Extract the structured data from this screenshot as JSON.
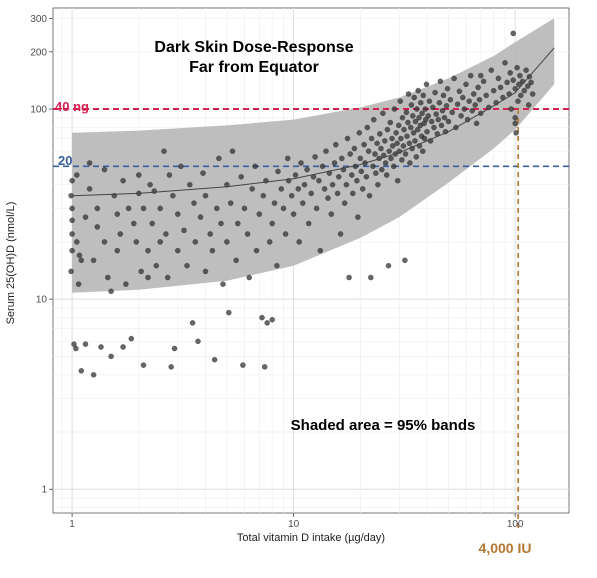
{
  "chart_data": {
    "type": "scatter",
    "title_line1": "Dark Skin Dose-Response",
    "title_line2": "Far from Equator",
    "xlabel": "Total vitamin D intake (µg/day)",
    "ylabel": "Serum 25(OH)D (nmol/L)",
    "x_scale": "log",
    "y_scale": "log",
    "xlim": [
      0.82,
      175
    ],
    "ylim": [
      0.75,
      340
    ],
    "x_ticks": [
      {
        "value": 1,
        "label": "1"
      },
      {
        "value": 10,
        "label": "10"
      },
      {
        "value": 100,
        "label": "100"
      }
    ],
    "y_ticks": [
      {
        "value": 1,
        "label": "1"
      },
      {
        "value": 10,
        "label": "10"
      },
      {
        "value": 100,
        "label": "100"
      },
      {
        "value": 200,
        "label": "200"
      },
      {
        "value": 300,
        "label": "300"
      }
    ],
    "grid": true,
    "reference_lines": [
      {
        "label": "40 ng",
        "y": 100,
        "color": "#d6204f"
      },
      {
        "label": "20",
        "y": 50,
        "color": "#3a5fa0"
      }
    ],
    "vertical_reference": {
      "label": "4,000 IU",
      "x": 100,
      "color": "#b5762f"
    },
    "annotation": "Shaded area = 95% bands",
    "fit_curve": [
      {
        "x": 1,
        "y": 35
      },
      {
        "x": 2,
        "y": 36
      },
      {
        "x": 5,
        "y": 39
      },
      {
        "x": 10,
        "y": 43
      },
      {
        "x": 20,
        "y": 51
      },
      {
        "x": 30,
        "y": 59
      },
      {
        "x": 50,
        "y": 76
      },
      {
        "x": 80,
        "y": 104
      },
      {
        "x": 100,
        "y": 122
      },
      {
        "x": 150,
        "y": 210
      }
    ],
    "band_upper": [
      {
        "x": 1,
        "y": 75
      },
      {
        "x": 2,
        "y": 77
      },
      {
        "x": 5,
        "y": 82
      },
      {
        "x": 10,
        "y": 88
      },
      {
        "x": 20,
        "y": 102
      },
      {
        "x": 30,
        "y": 115
      },
      {
        "x": 50,
        "y": 145
      },
      {
        "x": 80,
        "y": 190
      },
      {
        "x": 100,
        "y": 225
      },
      {
        "x": 150,
        "y": 300
      }
    ],
    "band_lower": [
      {
        "x": 1,
        "y": 10.8
      },
      {
        "x": 2,
        "y": 11.2
      },
      {
        "x": 5,
        "y": 12.5
      },
      {
        "x": 10,
        "y": 15
      },
      {
        "x": 20,
        "y": 21
      },
      {
        "x": 30,
        "y": 27
      },
      {
        "x": 50,
        "y": 41
      },
      {
        "x": 80,
        "y": 62
      },
      {
        "x": 100,
        "y": 78
      },
      {
        "x": 150,
        "y": 135
      }
    ],
    "points": [
      {
        "x": 0.99,
        "y": 14
      },
      {
        "x": 1.0,
        "y": 18
      },
      {
        "x": 1.0,
        "y": 22
      },
      {
        "x": 1.0,
        "y": 26
      },
      {
        "x": 1.0,
        "y": 30
      },
      {
        "x": 0.99,
        "y": 35
      },
      {
        "x": 1.0,
        "y": 42
      },
      {
        "x": 1.02,
        "y": 5.8
      },
      {
        "x": 1.04,
        "y": 5.5
      },
      {
        "x": 1.05,
        "y": 20
      },
      {
        "x": 1.05,
        "y": 45
      },
      {
        "x": 1.07,
        "y": 12
      },
      {
        "x": 1.08,
        "y": 17
      },
      {
        "x": 1.1,
        "y": 16
      },
      {
        "x": 1.1,
        "y": 4.2
      },
      {
        "x": 1.15,
        "y": 27
      },
      {
        "x": 1.15,
        "y": 5.8
      },
      {
        "x": 1.2,
        "y": 52
      },
      {
        "x": 1.2,
        "y": 38
      },
      {
        "x": 1.25,
        "y": 4.0
      },
      {
        "x": 1.25,
        "y": 16
      },
      {
        "x": 1.3,
        "y": 30
      },
      {
        "x": 1.3,
        "y": 24
      },
      {
        "x": 1.35,
        "y": 5.6
      },
      {
        "x": 1.4,
        "y": 20
      },
      {
        "x": 1.4,
        "y": 48
      },
      {
        "x": 1.45,
        "y": 13
      },
      {
        "x": 1.5,
        "y": 11
      },
      {
        "x": 1.5,
        "y": 5.0
      },
      {
        "x": 1.55,
        "y": 35
      },
      {
        "x": 1.6,
        "y": 28
      },
      {
        "x": 1.6,
        "y": 18
      },
      {
        "x": 1.65,
        "y": 22
      },
      {
        "x": 1.7,
        "y": 42
      },
      {
        "x": 1.7,
        "y": 5.6
      },
      {
        "x": 1.75,
        "y": 12
      },
      {
        "x": 1.8,
        "y": 30
      },
      {
        "x": 1.85,
        "y": 6.2
      },
      {
        "x": 1.9,
        "y": 25
      },
      {
        "x": 1.95,
        "y": 20
      },
      {
        "x": 2.0,
        "y": 36
      },
      {
        "x": 2.0,
        "y": 45
      },
      {
        "x": 2.05,
        "y": 14
      },
      {
        "x": 2.1,
        "y": 30
      },
      {
        "x": 2.1,
        "y": 4.5
      },
      {
        "x": 2.2,
        "y": 13
      },
      {
        "x": 2.2,
        "y": 18
      },
      {
        "x": 2.25,
        "y": 40
      },
      {
        "x": 2.3,
        "y": 25
      },
      {
        "x": 2.35,
        "y": 37
      },
      {
        "x": 2.4,
        "y": 15
      },
      {
        "x": 2.5,
        "y": 20
      },
      {
        "x": 2.5,
        "y": 30
      },
      {
        "x": 2.6,
        "y": 60
      },
      {
        "x": 2.65,
        "y": 22
      },
      {
        "x": 2.7,
        "y": 13
      },
      {
        "x": 2.75,
        "y": 45
      },
      {
        "x": 2.8,
        "y": 4.4
      },
      {
        "x": 2.85,
        "y": 35
      },
      {
        "x": 2.9,
        "y": 5.5
      },
      {
        "x": 3.0,
        "y": 28
      },
      {
        "x": 3.0,
        "y": 18
      },
      {
        "x": 3.1,
        "y": 50
      },
      {
        "x": 3.2,
        "y": 23
      },
      {
        "x": 3.3,
        "y": 15
      },
      {
        "x": 3.4,
        "y": 40
      },
      {
        "x": 3.5,
        "y": 7.5
      },
      {
        "x": 3.55,
        "y": 32
      },
      {
        "x": 3.6,
        "y": 20
      },
      {
        "x": 3.7,
        "y": 6.0
      },
      {
        "x": 3.8,
        "y": 27
      },
      {
        "x": 3.9,
        "y": 46
      },
      {
        "x": 4.0,
        "y": 14
      },
      {
        "x": 4.0,
        "y": 35
      },
      {
        "x": 4.2,
        "y": 22
      },
      {
        "x": 4.3,
        "y": 18
      },
      {
        "x": 4.4,
        "y": 4.8
      },
      {
        "x": 4.5,
        "y": 30
      },
      {
        "x": 4.6,
        "y": 55
      },
      {
        "x": 4.7,
        "y": 25
      },
      {
        "x": 4.8,
        "y": 12
      },
      {
        "x": 5.0,
        "y": 40
      },
      {
        "x": 5.0,
        "y": 20
      },
      {
        "x": 5.1,
        "y": 8.5
      },
      {
        "x": 5.2,
        "y": 32
      },
      {
        "x": 5.3,
        "y": 60
      },
      {
        "x": 5.5,
        "y": 16
      },
      {
        "x": 5.6,
        "y": 25
      },
      {
        "x": 5.8,
        "y": 44
      },
      {
        "x": 5.9,
        "y": 4.5
      },
      {
        "x": 6.0,
        "y": 30
      },
      {
        "x": 6.2,
        "y": 22
      },
      {
        "x": 6.3,
        "y": 13
      },
      {
        "x": 6.5,
        "y": 38
      },
      {
        "x": 6.7,
        "y": 50
      },
      {
        "x": 6.8,
        "y": 18
      },
      {
        "x": 7.0,
        "y": 28
      },
      {
        "x": 7.2,
        "y": 8.0
      },
      {
        "x": 7.3,
        "y": 35
      },
      {
        "x": 7.4,
        "y": 4.4
      },
      {
        "x": 7.5,
        "y": 42
      },
      {
        "x": 7.6,
        "y": 7.5
      },
      {
        "x": 7.8,
        "y": 20
      },
      {
        "x": 8.0,
        "y": 25
      },
      {
        "x": 8.0,
        "y": 7.8
      },
      {
        "x": 8.2,
        "y": 32
      },
      {
        "x": 8.4,
        "y": 15
      },
      {
        "x": 8.5,
        "y": 47
      },
      {
        "x": 8.8,
        "y": 38
      },
      {
        "x": 9.0,
        "y": 30
      },
      {
        "x": 9.2,
        "y": 22
      },
      {
        "x": 9.4,
        "y": 55
      },
      {
        "x": 9.5,
        "y": 42
      },
      {
        "x": 9.8,
        "y": 35
      },
      {
        "x": 10.0,
        "y": 28
      },
      {
        "x": 10.2,
        "y": 45
      },
      {
        "x": 10.5,
        "y": 38
      },
      {
        "x": 10.6,
        "y": 20
      },
      {
        "x": 10.8,
        "y": 52
      },
      {
        "x": 11.0,
        "y": 32
      },
      {
        "x": 11.2,
        "y": 40
      },
      {
        "x": 11.5,
        "y": 48
      },
      {
        "x": 11.7,
        "y": 25
      },
      {
        "x": 12.0,
        "y": 36
      },
      {
        "x": 12.3,
        "y": 44
      },
      {
        "x": 12.5,
        "y": 56
      },
      {
        "x": 12.7,
        "y": 30
      },
      {
        "x": 13.0,
        "y": 42
      },
      {
        "x": 13.2,
        "y": 18
      },
      {
        "x": 13.5,
        "y": 50
      },
      {
        "x": 13.8,
        "y": 38
      },
      {
        "x": 14.0,
        "y": 60
      },
      {
        "x": 14.3,
        "y": 34
      },
      {
        "x": 14.5,
        "y": 46
      },
      {
        "x": 14.8,
        "y": 28
      },
      {
        "x": 15.0,
        "y": 40
      },
      {
        "x": 15.3,
        "y": 52
      },
      {
        "x": 15.5,
        "y": 65
      },
      {
        "x": 15.8,
        "y": 36
      },
      {
        "x": 16.0,
        "y": 44
      },
      {
        "x": 16.3,
        "y": 22
      },
      {
        "x": 16.5,
        "y": 55
      },
      {
        "x": 16.8,
        "y": 48
      },
      {
        "x": 17.0,
        "y": 32
      },
      {
        "x": 17.3,
        "y": 40
      },
      {
        "x": 17.5,
        "y": 70
      },
      {
        "x": 17.8,
        "y": 13
      },
      {
        "x": 18.0,
        "y": 58
      },
      {
        "x": 18.3,
        "y": 45
      },
      {
        "x": 18.5,
        "y": 36
      },
      {
        "x": 18.8,
        "y": 62
      },
      {
        "x": 19.0,
        "y": 50
      },
      {
        "x": 19.3,
        "y": 42
      },
      {
        "x": 19.5,
        "y": 27
      },
      {
        "x": 19.8,
        "y": 75
      },
      {
        "x": 20.0,
        "y": 55
      },
      {
        "x": 20.2,
        "y": 47
      },
      {
        "x": 20.5,
        "y": 38
      },
      {
        "x": 20.8,
        "y": 65
      },
      {
        "x": 21.0,
        "y": 52
      },
      {
        "x": 21.3,
        "y": 44
      },
      {
        "x": 21.5,
        "y": 80
      },
      {
        "x": 21.8,
        "y": 60
      },
      {
        "x": 22.0,
        "y": 35
      },
      {
        "x": 22.3,
        "y": 13
      },
      {
        "x": 22.5,
        "y": 70
      },
      {
        "x": 22.8,
        "y": 50
      },
      {
        "x": 23.0,
        "y": 88
      },
      {
        "x": 23.3,
        "y": 58
      },
      {
        "x": 23.5,
        "y": 46
      },
      {
        "x": 23.8,
        "y": 66
      },
      {
        "x": 24.0,
        "y": 40
      },
      {
        "x": 24.3,
        "y": 55
      },
      {
        "x": 24.5,
        "y": 74
      },
      {
        "x": 24.8,
        "y": 62
      },
      {
        "x": 25.0,
        "y": 48
      },
      {
        "x": 25.3,
        "y": 95
      },
      {
        "x": 25.5,
        "y": 57
      },
      {
        "x": 25.8,
        "y": 68
      },
      {
        "x": 26.0,
        "y": 52
      },
      {
        "x": 26.3,
        "y": 45
      },
      {
        "x": 26.5,
        "y": 78
      },
      {
        "x": 26.8,
        "y": 15
      },
      {
        "x": 27.0,
        "y": 60
      },
      {
        "x": 27.3,
        "y": 85
      },
      {
        "x": 27.5,
        "y": 55
      },
      {
        "x": 27.8,
        "y": 70
      },
      {
        "x": 28.0,
        "y": 64
      },
      {
        "x": 28.3,
        "y": 50
      },
      {
        "x": 28.5,
        "y": 100
      },
      {
        "x": 28.8,
        "y": 58
      },
      {
        "x": 29.0,
        "y": 75
      },
      {
        "x": 29.3,
        "y": 66
      },
      {
        "x": 29.5,
        "y": 42
      },
      {
        "x": 29.8,
        "y": 82
      },
      {
        "x": 30.0,
        "y": 60
      },
      {
        "x": 30.3,
        "y": 110
      },
      {
        "x": 30.5,
        "y": 70
      },
      {
        "x": 30.8,
        "y": 54
      },
      {
        "x": 31.0,
        "y": 90
      },
      {
        "x": 31.3,
        "y": 64
      },
      {
        "x": 31.5,
        "y": 78
      },
      {
        "x": 31.8,
        "y": 16
      },
      {
        "x": 32.0,
        "y": 58
      },
      {
        "x": 32.3,
        "y": 96
      },
      {
        "x": 32.5,
        "y": 72
      },
      {
        "x": 32.8,
        "y": 85
      },
      {
        "x": 33.0,
        "y": 120
      },
      {
        "x": 33.3,
        "y": 66
      },
      {
        "x": 33.5,
        "y": 52
      },
      {
        "x": 33.8,
        "y": 80
      },
      {
        "x": 34.0,
        "y": 105
      },
      {
        "x": 34.3,
        "y": 62
      },
      {
        "x": 34.5,
        "y": 92
      },
      {
        "x": 34.8,
        "y": 75
      },
      {
        "x": 35.0,
        "y": 115
      },
      {
        "x": 35.3,
        "y": 68
      },
      {
        "x": 35.5,
        "y": 86
      },
      {
        "x": 35.8,
        "y": 56
      },
      {
        "x": 36.0,
        "y": 100
      },
      {
        "x": 36.3,
        "y": 78
      },
      {
        "x": 36.5,
        "y": 125
      },
      {
        "x": 36.8,
        "y": 90
      },
      {
        "x": 37.0,
        "y": 64
      },
      {
        "x": 37.3,
        "y": 82
      },
      {
        "x": 37.5,
        "y": 108
      },
      {
        "x": 37.8,
        "y": 72
      },
      {
        "x": 38.0,
        "y": 95
      },
      {
        "x": 38.3,
        "y": 60
      },
      {
        "x": 38.5,
        "y": 118
      },
      {
        "x": 38.8,
        "y": 84
      },
      {
        "x": 39.0,
        "y": 70
      },
      {
        "x": 39.3,
        "y": 100
      },
      {
        "x": 39.5,
        "y": 88
      },
      {
        "x": 39.8,
        "y": 135
      },
      {
        "x": 40.0,
        "y": 76
      },
      {
        "x": 40.5,
        "y": 92
      },
      {
        "x": 41.0,
        "y": 110
      },
      {
        "x": 41.5,
        "y": 68
      },
      {
        "x": 42.0,
        "y": 86
      },
      {
        "x": 42.5,
        "y": 102
      },
      {
        "x": 43.0,
        "y": 80
      },
      {
        "x": 43.5,
        "y": 122
      },
      {
        "x": 44.0,
        "y": 94
      },
      {
        "x": 44.5,
        "y": 74
      },
      {
        "x": 45.0,
        "y": 88
      },
      {
        "x": 45.5,
        "y": 108
      },
      {
        "x": 46.0,
        "y": 140
      },
      {
        "x": 46.5,
        "y": 82
      },
      {
        "x": 47.0,
        "y": 98
      },
      {
        "x": 47.5,
        "y": 118
      },
      {
        "x": 48.0,
        "y": 90
      },
      {
        "x": 48.5,
        "y": 76
      },
      {
        "x": 49.0,
        "y": 104
      },
      {
        "x": 49.5,
        "y": 128
      },
      {
        "x": 50.0,
        "y": 86
      },
      {
        "x": 51.0,
        "y": 112
      },
      {
        "x": 52.0,
        "y": 96
      },
      {
        "x": 53.0,
        "y": 145
      },
      {
        "x": 54.0,
        "y": 80
      },
      {
        "x": 55.0,
        "y": 106
      },
      {
        "x": 56.0,
        "y": 124
      },
      {
        "x": 57.0,
        "y": 92
      },
      {
        "x": 58.0,
        "y": 115
      },
      {
        "x": 59.0,
        "y": 100
      },
      {
        "x": 60.0,
        "y": 135
      },
      {
        "x": 61.0,
        "y": 88
      },
      {
        "x": 62.0,
        "y": 110
      },
      {
        "x": 63.0,
        "y": 150
      },
      {
        "x": 64.0,
        "y": 98
      },
      {
        "x": 65.0,
        "y": 120
      },
      {
        "x": 66.0,
        "y": 105
      },
      {
        "x": 67.0,
        "y": 84
      },
      {
        "x": 68.0,
        "y": 130
      },
      {
        "x": 69.0,
        "y": 112
      },
      {
        "x": 70.0,
        "y": 95
      },
      {
        "x": 72.0,
        "y": 140
      },
      {
        "x": 74.0,
        "y": 118
      },
      {
        "x": 76.0,
        "y": 102
      },
      {
        "x": 78.0,
        "y": 160
      },
      {
        "x": 80.0,
        "y": 125
      },
      {
        "x": 82.0,
        "y": 108
      },
      {
        "x": 84.0,
        "y": 145
      },
      {
        "x": 86.0,
        "y": 130
      },
      {
        "x": 88.0,
        "y": 115
      },
      {
        "x": 90.0,
        "y": 175
      },
      {
        "x": 92.0,
        "y": 138
      },
      {
        "x": 94.0,
        "y": 120
      },
      {
        "x": 95.0,
        "y": 155
      },
      {
        "x": 96.0,
        "y": 100
      },
      {
        "x": 98.0,
        "y": 142
      },
      {
        "x": 100.0,
        "y": 128
      },
      {
        "x": 100.0,
        "y": 90
      },
      {
        "x": 102.0,
        "y": 165
      },
      {
        "x": 103.0,
        "y": 110
      },
      {
        "x": 104.0,
        "y": 135
      },
      {
        "x": 105.0,
        "y": 150
      },
      {
        "x": 106.0,
        "y": 118
      },
      {
        "x": 108.0,
        "y": 140
      },
      {
        "x": 110.0,
        "y": 125
      },
      {
        "x": 112.0,
        "y": 160
      },
      {
        "x": 114.0,
        "y": 132
      },
      {
        "x": 115.0,
        "y": 105
      },
      {
        "x": 116.0,
        "y": 148
      },
      {
        "x": 118.0,
        "y": 138
      },
      {
        "x": 120.0,
        "y": 120
      },
      {
        "x": 98.0,
        "y": 250
      },
      {
        "x": 100.0,
        "y": 84
      },
      {
        "x": 101.0,
        "y": 75
      },
      {
        "x": 70.0,
        "y": 150
      }
    ]
  }
}
